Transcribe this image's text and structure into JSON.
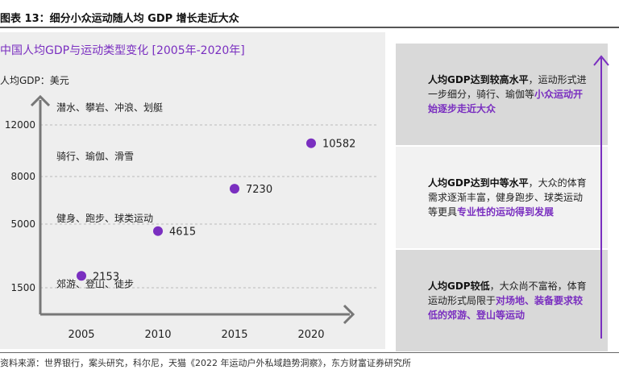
{
  "figure_title": "图表 13：细分小众运动随人均 GDP 增长走近大众",
  "source_note": "资料来源：世界银行，案头研究，科尔尼，天猫《2022 年运动户外私域趋势洞察》，东方财富证券研究所",
  "colors": {
    "accent": "#7a2fc0",
    "panel_bg": "#eeeeee",
    "box_light": "#d9d9d9",
    "box_mid": "#f2f2f2",
    "axis": "#777777"
  },
  "chart_data": {
    "type": "scatter",
    "title": "中国人均GDP与运动类型变化 [2005年-2020年]",
    "ylabel": "人均GDP：美元",
    "xlabel": "",
    "x": [
      2005,
      2010,
      2015,
      2020
    ],
    "values": [
      2153,
      4615,
      7230,
      10582
    ],
    "x_ticks": [
      "2005",
      "2010",
      "2015",
      "2020"
    ],
    "y_ticks": [
      1500,
      5000,
      8000,
      12000
    ],
    "y_tick_labels": [
      "1500",
      "5000",
      "8000",
      "12000"
    ],
    "point_labels": [
      "2153",
      "4615",
      "7230",
      "10582"
    ],
    "ylim": [
      0,
      14000
    ],
    "grid": "dashed horizontal at y ticks",
    "annotations": [
      {
        "text": "郊游、登山、徒步",
        "y": 1700
      },
      {
        "text": "健身、跑步、球类运动",
        "y": 5350
      },
      {
        "text": "骑行、瑜伽、滑雪",
        "y": 9550
      },
      {
        "text": "潜水、攀岩、冲浪、划艇",
        "y": 13350
      }
    ]
  },
  "sidebar": {
    "arrow": "up",
    "boxes": [
      {
        "tone": "dark",
        "runs": [
          {
            "t": "人均GDP达到较高水平",
            "s": "b"
          },
          {
            "t": "，运动形式进一步细分，骑行、瑜伽等",
            "s": ""
          },
          {
            "t": "小众运动开始逐步走近大众",
            "s": "hl"
          }
        ]
      },
      {
        "tone": "light",
        "runs": [
          {
            "t": "人均GDP达到中等水平",
            "s": "b"
          },
          {
            "t": "，大众的体育需求逐渐丰富，健身跑步、球类运动等更具",
            "s": ""
          },
          {
            "t": "专业性的运动得到发展",
            "s": "hl"
          }
        ]
      },
      {
        "tone": "dark",
        "runs": [
          {
            "t": "人均GDP较低",
            "s": "b"
          },
          {
            "t": "，大众尚不富裕，体育运动形式局限于",
            "s": ""
          },
          {
            "t": "对场地、装备要求较低的郊游、登山等运动",
            "s": "hl"
          }
        ]
      }
    ]
  }
}
